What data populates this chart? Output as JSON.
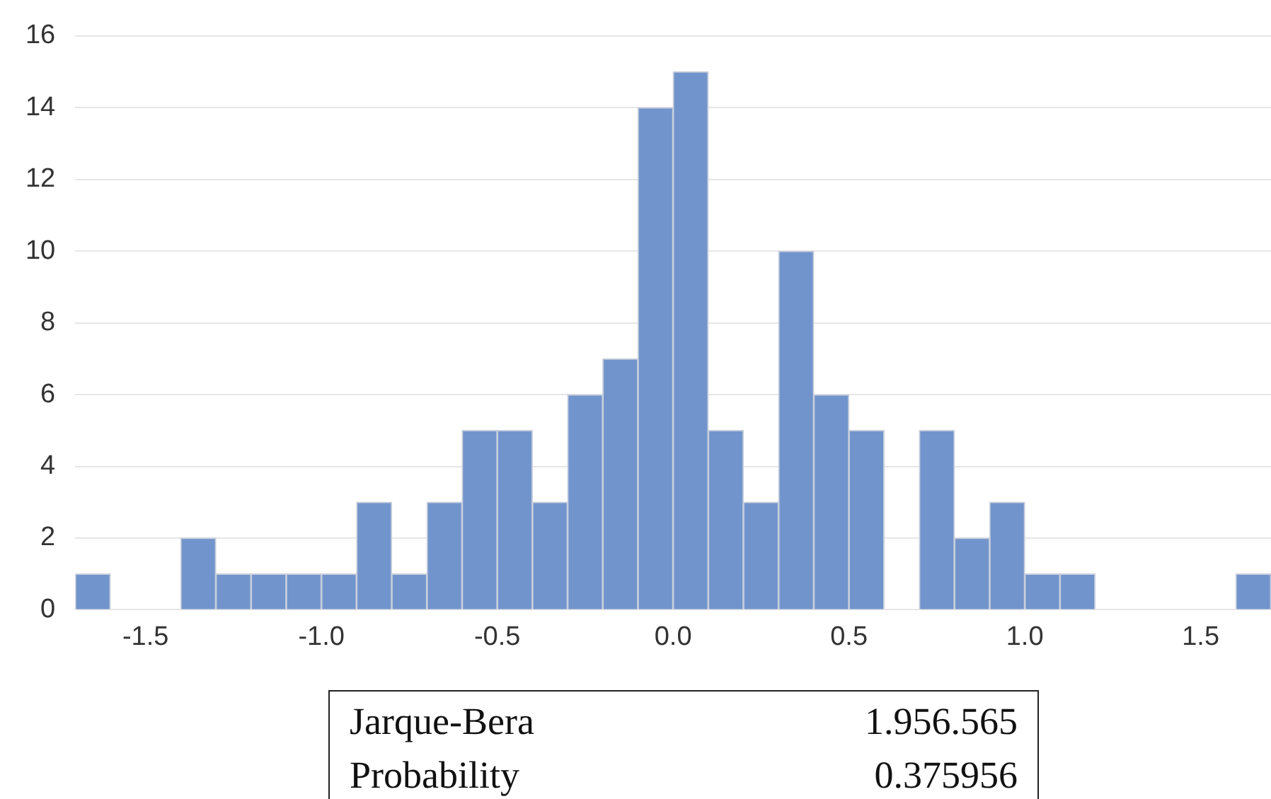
{
  "chart_data": {
    "type": "histogram",
    "bins": [
      -1.7,
      -1.6,
      -1.5,
      -1.4,
      -1.3,
      -1.2,
      -1.1,
      -1.0,
      -0.9,
      -0.8,
      -0.7,
      -0.6,
      -0.5,
      -0.4,
      -0.3,
      -0.2,
      -0.1,
      0.0,
      0.1,
      0.2,
      0.3,
      0.4,
      0.5,
      0.6,
      0.7,
      0.8,
      0.9,
      1.0,
      1.1,
      1.2,
      1.3,
      1.4,
      1.5,
      1.6,
      1.7
    ],
    "values": [
      1,
      0,
      0,
      2,
      1,
      1,
      1,
      1,
      3,
      1,
      3,
      5,
      5,
      3,
      6,
      7,
      14,
      15,
      5,
      3,
      10,
      6,
      5,
      0,
      5,
      2,
      3,
      1,
      1,
      0,
      0,
      0,
      0,
      1
    ],
    "color": "#7294cc",
    "xlim": [
      -1.7,
      1.7
    ],
    "xticks": [
      {
        "value": -1.5,
        "label": "-1.5"
      },
      {
        "value": -1,
        "label": "-1.0"
      },
      {
        "value": -0.5,
        "label": "-0.5"
      },
      {
        "value": 0,
        "label": "0.0"
      },
      {
        "value": 0.5,
        "label": "0.5"
      },
      {
        "value": 1,
        "label": "1.0"
      },
      {
        "value": 1.5,
        "label": "1.5"
      }
    ],
    "ylim": [
      0,
      16
    ],
    "yticks": [
      0,
      2,
      4,
      6,
      8,
      10,
      12,
      14,
      16
    ],
    "grid": "y",
    "legend": false,
    "annotations": [
      "Jarque-Bera",
      "1.956.565",
      "Probability",
      "0.375956"
    ]
  }
}
